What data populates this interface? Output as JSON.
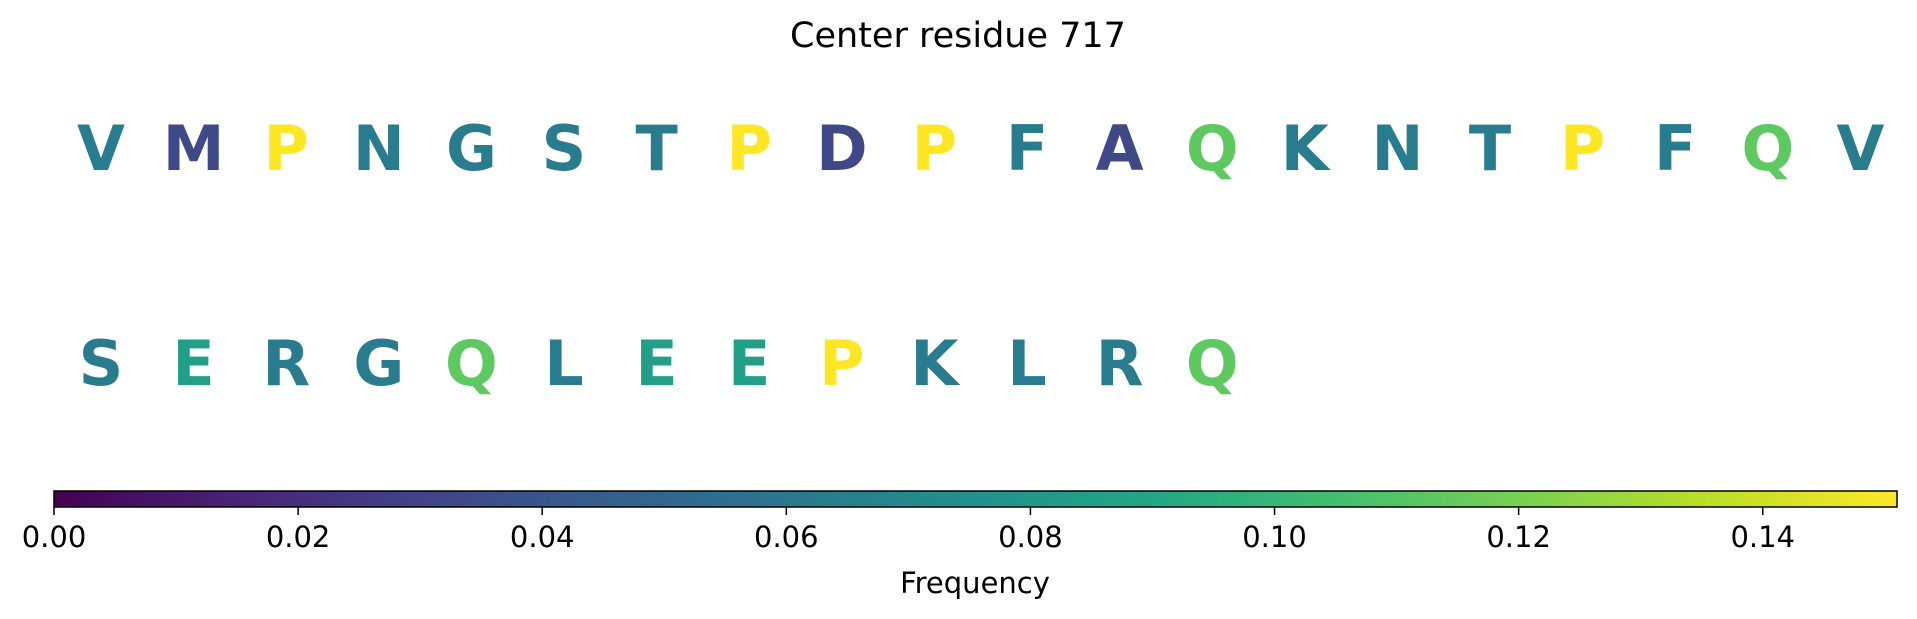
{
  "chart_data": {
    "type": "heatmap",
    "title": "Center residue 717",
    "residues": [
      {
        "letter": "V",
        "frequency": 0.063
      },
      {
        "letter": "M",
        "frequency": 0.033
      },
      {
        "letter": "P",
        "frequency": 0.151
      },
      {
        "letter": "N",
        "frequency": 0.063
      },
      {
        "letter": "G",
        "frequency": 0.063
      },
      {
        "letter": "S",
        "frequency": 0.063
      },
      {
        "letter": "T",
        "frequency": 0.063
      },
      {
        "letter": "P",
        "frequency": 0.151
      },
      {
        "letter": "D",
        "frequency": 0.033
      },
      {
        "letter": "P",
        "frequency": 0.151
      },
      {
        "letter": "F",
        "frequency": 0.063
      },
      {
        "letter": "A",
        "frequency": 0.033
      },
      {
        "letter": "Q",
        "frequency": 0.113
      },
      {
        "letter": "K",
        "frequency": 0.063
      },
      {
        "letter": "N",
        "frequency": 0.063
      },
      {
        "letter": "T",
        "frequency": 0.063
      },
      {
        "letter": "P",
        "frequency": 0.151
      },
      {
        "letter": "F",
        "frequency": 0.063
      },
      {
        "letter": "Q",
        "frequency": 0.113
      },
      {
        "letter": "V",
        "frequency": 0.063
      },
      {
        "letter": "S",
        "frequency": 0.063
      },
      {
        "letter": "E",
        "frequency": 0.085
      },
      {
        "letter": "R",
        "frequency": 0.063
      },
      {
        "letter": "G",
        "frequency": 0.063
      },
      {
        "letter": "Q",
        "frequency": 0.113
      },
      {
        "letter": "L",
        "frequency": 0.063
      },
      {
        "letter": "E",
        "frequency": 0.085
      },
      {
        "letter": "E",
        "frequency": 0.085
      },
      {
        "letter": "P",
        "frequency": 0.151
      },
      {
        "letter": "K",
        "frequency": 0.063
      },
      {
        "letter": "L",
        "frequency": 0.063
      },
      {
        "letter": "R",
        "frequency": 0.063
      },
      {
        "letter": "Q",
        "frequency": 0.113
      }
    ],
    "residues_per_row": 20,
    "colorbar": {
      "label": "Frequency",
      "colormap": "viridis",
      "range": [
        0.0,
        0.151
      ],
      "ticks": [
        0.0,
        0.02,
        0.04,
        0.06,
        0.08,
        0.1,
        0.12,
        0.14
      ],
      "tick_labels": [
        "0.00",
        "0.02",
        "0.04",
        "0.06",
        "0.08",
        "0.10",
        "0.12",
        "0.14"
      ]
    }
  }
}
